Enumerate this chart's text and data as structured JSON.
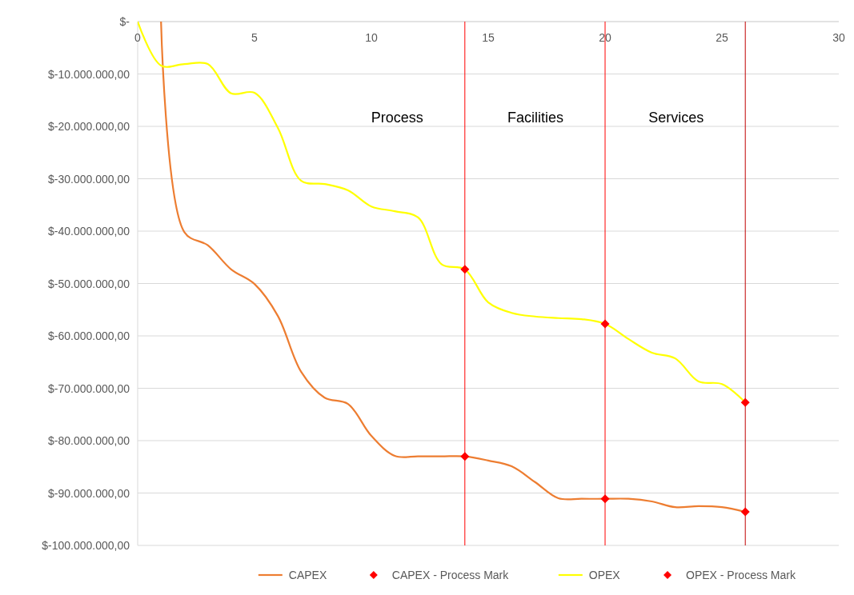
{
  "chart_data": {
    "type": "line",
    "series": [
      {
        "name": "CAPEX",
        "color": "#ed7d31",
        "x": [
          1,
          2,
          3,
          4,
          5,
          6,
          7,
          8,
          9,
          10,
          11,
          12,
          13,
          14,
          15,
          16,
          17,
          18,
          19,
          20,
          21,
          22,
          23,
          24,
          25,
          26
        ],
        "values": [
          0,
          -40200000,
          -42700000,
          -47300000,
          -50100000,
          -56200000,
          -66900000,
          -71800000,
          -73000000,
          -79100000,
          -82900000,
          -83000000,
          -83000000,
          -83000000,
          -83800000,
          -84900000,
          -87900000,
          -91000000,
          -91100000,
          -91100000,
          -91100000,
          -91600000,
          -92700000,
          -92500000,
          -92700000,
          -93600000
        ]
      },
      {
        "name": "CAPEX - Process Mark",
        "type": "scatter",
        "marker": "diamond",
        "color": "#ff0000",
        "x": [
          14,
          20,
          26
        ],
        "values": [
          -83000000,
          -91100000,
          -93600000
        ]
      },
      {
        "name": "OPEX",
        "color": "#ffff00",
        "x": [
          0,
          1,
          2,
          3,
          4,
          5,
          6,
          7,
          8,
          9,
          10,
          11,
          12,
          13,
          14,
          15,
          16,
          17,
          18,
          19,
          20,
          21,
          22,
          23,
          24,
          25,
          26
        ],
        "values": [
          0,
          -8400000,
          -8100000,
          -8100000,
          -13700000,
          -13600000,
          -20300000,
          -30400000,
          -31000000,
          -32200000,
          -35300000,
          -36200000,
          -37400000,
          -46300000,
          -47300000,
          -53600000,
          -55600000,
          -56300000,
          -56600000,
          -56800000,
          -57700000,
          -60600000,
          -63200000,
          -64300000,
          -68700000,
          -69200000,
          -72700000
        ]
      },
      {
        "name": "OPEX - Process Mark",
        "type": "scatter",
        "marker": "diamond",
        "color": "#ff0000",
        "x": [
          14,
          20,
          26
        ],
        "values": [
          -47300000,
          -57700000,
          -72700000
        ]
      }
    ],
    "xlim": [
      0,
      30
    ],
    "xticks": [
      0,
      5,
      10,
      15,
      20,
      25,
      30
    ],
    "ylim": [
      -100000000,
      0
    ],
    "yticks": [
      {
        "value": 0,
        "label": "$-"
      },
      {
        "value": -10000000,
        "label": "$-10.000.000,00"
      },
      {
        "value": -20000000,
        "label": "$-20.000.000,00"
      },
      {
        "value": -30000000,
        "label": "$-30.000.000,00"
      },
      {
        "value": -40000000,
        "label": "$-40.000.000,00"
      },
      {
        "value": -50000000,
        "label": "$-50.000.000,00"
      },
      {
        "value": -60000000,
        "label": "$-60.000.000,00"
      },
      {
        "value": -70000000,
        "label": "$-70.000.000,00"
      },
      {
        "value": -80000000,
        "label": "$-80.000.000,00"
      },
      {
        "value": -90000000,
        "label": "$-90.000.000,00"
      },
      {
        "value": -100000000,
        "label": "$-100.000.000,00"
      }
    ],
    "ref_lines": [
      {
        "axis": "x",
        "value": 14,
        "color": "#ff0000"
      },
      {
        "axis": "x",
        "value": 20,
        "color": "#ff0000"
      },
      {
        "axis": "x",
        "value": 26,
        "color": "#c00000"
      }
    ],
    "annotations": [
      "Process",
      "Facilities",
      "Services"
    ],
    "grid": "y",
    "legend": "bottom",
    "line_style": "solid"
  }
}
